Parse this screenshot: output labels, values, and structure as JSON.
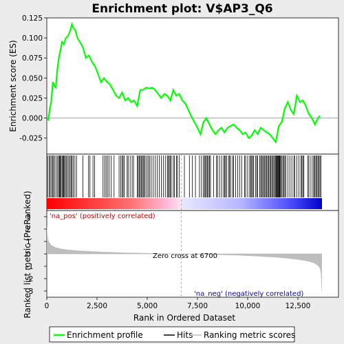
{
  "chart_data": {
    "type": "line",
    "title": "Enrichment plot: V$AP3_Q6",
    "xlabel": "Rank in Ordered Dataset",
    "ylabel_top": "Enrichment score (ES)",
    "ylabel_bottom": "Ranked list metric (PreRanked)",
    "x_range": [
      0,
      13700
    ],
    "es_ylim": [
      -0.045,
      0.125
    ],
    "es_yticks": [
      "0.125",
      "0.100",
      "0.075",
      "0.050",
      "0.025",
      "0.000",
      "-0.025"
    ],
    "es_ytick_values": [
      0.125,
      0.1,
      0.075,
      0.05,
      0.025,
      0.0,
      -0.025
    ],
    "metric_ylim": [
      -3.5,
      3.5
    ],
    "metric_yticks": [
      "3",
      "2",
      "1",
      "0",
      "-1",
      "-2",
      "-3"
    ],
    "metric_ytick_values": [
      3,
      2,
      1,
      0,
      -1,
      -2,
      -3
    ],
    "xticks": [
      "0",
      "2,500",
      "5,000",
      "7,500",
      "10,000",
      "12,500"
    ],
    "xtick_values": [
      0,
      2500,
      5000,
      7500,
      10000,
      12500
    ],
    "zero_cross_rank": 6700,
    "zero_cross_label": "Zero cross at 6700",
    "pos_label": "'na_pos' (positively correlated)",
    "neg_label": "'na_neg' (negatively correlated)",
    "enrichment_profile": {
      "name": "Enrichment profile",
      "x": [
        0,
        80,
        150,
        220,
        300,
        380,
        450,
        520,
        600,
        680,
        760,
        850,
        950,
        1050,
        1150,
        1250,
        1330,
        1420,
        1520,
        1650,
        1800,
        1950,
        2100,
        2250,
        2400,
        2550,
        2700,
        2850,
        3000,
        3150,
        3300,
        3450,
        3600,
        3750,
        3900,
        4050,
        4200,
        4350,
        4500,
        4650,
        4800,
        4950,
        5100,
        5250,
        5400,
        5550,
        5700,
        5850,
        6000,
        6150,
        6300,
        6450,
        6600,
        6750,
        6900,
        7050,
        7200,
        7350,
        7500,
        7650,
        7800,
        7950,
        8100,
        8250,
        8400,
        8550,
        8700,
        8850,
        9000,
        9150,
        9300,
        9450,
        9600,
        9750,
        9900,
        10050,
        10200,
        10350,
        10500,
        10650,
        10800,
        10950,
        11100,
        11250,
        11400,
        11550,
        11700,
        11850,
        12000,
        12150,
        12300,
        12450,
        12600,
        12750,
        12900,
        13050,
        13200,
        13350,
        13500,
        13600
      ],
      "y": [
        0.0,
        -0.002,
        0.012,
        0.02,
        0.045,
        0.04,
        0.038,
        0.06,
        0.075,
        0.085,
        0.095,
        0.092,
        0.1,
        0.102,
        0.108,
        0.117,
        0.112,
        0.11,
        0.1,
        0.095,
        0.088,
        0.075,
        0.078,
        0.07,
        0.065,
        0.055,
        0.045,
        0.05,
        0.045,
        0.042,
        0.035,
        0.028,
        0.025,
        0.032,
        0.022,
        0.025,
        0.02,
        0.022,
        0.015,
        0.035,
        0.035,
        0.038,
        0.037,
        0.038,
        0.035,
        0.03,
        0.025,
        0.03,
        0.028,
        0.022,
        0.035,
        0.028,
        0.03,
        0.022,
        0.018,
        0.01,
        0.002,
        -0.005,
        -0.012,
        -0.02,
        -0.005,
        0.0,
        -0.008,
        -0.015,
        -0.02,
        -0.015,
        -0.012,
        -0.018,
        -0.012,
        -0.01,
        -0.008,
        -0.012,
        -0.015,
        -0.02,
        -0.018,
        -0.025,
        -0.022,
        -0.015,
        -0.02,
        -0.012,
        -0.015,
        -0.018,
        -0.02,
        -0.025,
        -0.03,
        -0.01,
        -0.005,
        0.012,
        0.02,
        0.01,
        0.005,
        0.028,
        0.02,
        0.022,
        0.015,
        0.005,
        0.0,
        -0.008,
        0.0,
        0.003
      ]
    },
    "hits": {
      "name": "Hits",
      "x": [
        40,
        120,
        170,
        230,
        290,
        330,
        390,
        470,
        540,
        590,
        630,
        670,
        710,
        760,
        800,
        840,
        880,
        930,
        980,
        1040,
        1100,
        1160,
        1210,
        1260,
        1320,
        1400,
        1480,
        1800,
        2080,
        2150,
        2300,
        2380,
        2800,
        2880,
        2950,
        3020,
        3100,
        3200,
        3350,
        3600,
        3680,
        3750,
        3800,
        3850,
        4000,
        4050,
        4150,
        4250,
        4320,
        4500,
        4550,
        4600,
        4650,
        4700,
        4750,
        4800,
        4850,
        4900,
        4980,
        5050,
        5120,
        5200,
        5300,
        5400,
        5500,
        5600,
        5700,
        5800,
        5900,
        6000,
        6050,
        6100,
        6150,
        6200,
        6300,
        6350,
        6450,
        6500,
        6600,
        6850,
        7100,
        7250,
        7400,
        7600,
        7700,
        7800,
        7850,
        7900,
        7950,
        8000,
        8050,
        8100,
        8150,
        8300,
        8450,
        8500,
        8600,
        8700,
        8800,
        8850,
        8900,
        8950,
        9050,
        9100,
        9150,
        9250,
        9300,
        9400,
        9500,
        9600,
        9700,
        9850,
        9900,
        10000,
        10100,
        10150,
        10200,
        10250,
        10300,
        10400,
        10450,
        10500,
        10600,
        10650,
        10700,
        10750,
        10800,
        10850,
        10900,
        10950,
        11000,
        11050,
        11100,
        11150,
        11200,
        11250,
        11300,
        11350,
        11400,
        11430,
        11460,
        11490,
        11520,
        11550,
        11580,
        11610,
        11640,
        11700,
        11750,
        11800,
        11850,
        11900,
        12000,
        12100,
        12200,
        12300,
        12350,
        12450,
        12550,
        12650,
        12700,
        12750,
        12800,
        13000,
        13050,
        13150,
        13250,
        13300,
        13350,
        13400,
        13450,
        13500,
        13550,
        13600,
        13650
      ]
    },
    "ranking_metric": {
      "name": "Ranking metric scores",
      "x": [
        0,
        20,
        50,
        100,
        200,
        400,
        700,
        1000,
        1500,
        2000,
        3000,
        4000,
        5000,
        6000,
        6700,
        7500,
        8500,
        9500,
        10500,
        11500,
        12000,
        12500,
        13000,
        13300,
        13500,
        13600,
        13650,
        13700
      ],
      "y": [
        2.4,
        1.8,
        1.3,
        1.0,
        0.75,
        0.55,
        0.42,
        0.35,
        0.28,
        0.22,
        0.15,
        0.1,
        0.06,
        0.02,
        0.0,
        -0.04,
        -0.08,
        -0.13,
        -0.2,
        -0.3,
        -0.38,
        -0.47,
        -0.6,
        -0.75,
        -0.95,
        -1.2,
        -1.6,
        -3.4
      ]
    },
    "legend": [
      "Enrichment profile",
      "Hits",
      "Ranking metric scores"
    ],
    "colors": {
      "profile": "#00ff00",
      "hits": "#000000",
      "metric_fill": "#bebebe",
      "zero_line": "#888888",
      "pos_text": "#cc0000",
      "neg_text": "#0000cc"
    }
  }
}
